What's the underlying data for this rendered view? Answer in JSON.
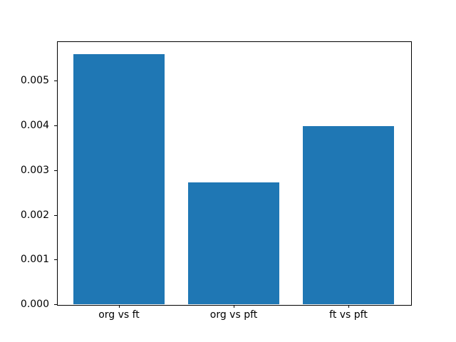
{
  "chart_data": {
    "type": "bar",
    "categories": [
      "org vs ft",
      "org vs pft",
      "ft vs pft"
    ],
    "values": [
      0.0056,
      0.00272,
      0.00398
    ],
    "title": "",
    "xlabel": "",
    "ylabel": "",
    "xlim": [
      -0.54,
      2.54
    ],
    "ylim": [
      0,
      0.00588
    ],
    "yticks": [
      0,
      0.001,
      0.002,
      0.003,
      0.004,
      0.005
    ],
    "ytick_labels": [
      "0.000",
      "0.001",
      "0.002",
      "0.003",
      "0.004",
      "0.005"
    ],
    "bar_width_fraction": 0.8,
    "bar_color": "#1f77b4",
    "axis_color": "#000000",
    "grid": false,
    "legend": null
  }
}
